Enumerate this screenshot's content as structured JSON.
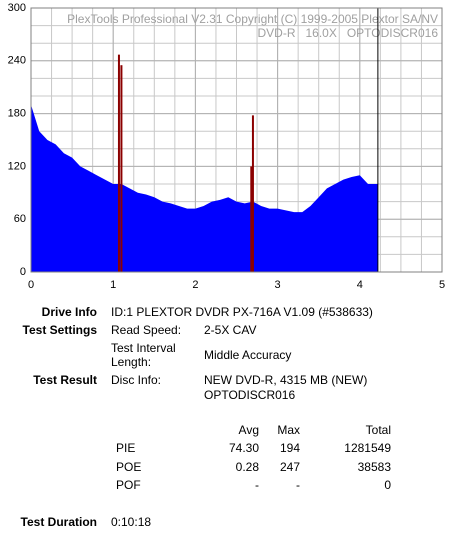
{
  "chart_data": {
    "type": "area",
    "overlay_text": [
      "PlexTools Professional V2.31 Copyright (C) 1999-2005 Plextor SA/NV",
      "DVD-R   16.0X   OPTODISCR016"
    ],
    "xlim": [
      0,
      5
    ],
    "xticks": [
      0,
      1,
      2,
      3,
      4,
      5
    ],
    "ylim": [
      0,
      300
    ],
    "yticks": [
      0,
      60,
      120,
      180,
      240,
      300
    ],
    "grid": true,
    "minor_grid": {
      "x": 0.25,
      "y": 20
    },
    "end_marker": {
      "x": 4.22,
      "color": "#000000"
    },
    "series": [
      {
        "color": "#0000ff",
        "mark": "area",
        "x": [
          0,
          0.05,
          0.1,
          0.2,
          0.3,
          0.4,
          0.5,
          0.6,
          0.7,
          0.8,
          0.9,
          1.0,
          1.1,
          1.2,
          1.3,
          1.4,
          1.5,
          1.6,
          1.7,
          1.8,
          1.9,
          2.0,
          2.1,
          2.2,
          2.3,
          2.4,
          2.5,
          2.6,
          2.7,
          2.8,
          2.9,
          3.0,
          3.1,
          3.2,
          3.3,
          3.4,
          3.5,
          3.6,
          3.7,
          3.8,
          3.9,
          4.0,
          4.1,
          4.22
        ],
        "values": [
          190,
          175,
          160,
          150,
          145,
          135,
          130,
          120,
          115,
          110,
          105,
          100,
          100,
          95,
          90,
          88,
          85,
          80,
          78,
          75,
          72,
          72,
          75,
          80,
          82,
          85,
          80,
          78,
          80,
          75,
          72,
          72,
          70,
          68,
          68,
          75,
          85,
          95,
          100,
          105,
          108,
          110,
          100,
          100
        ]
      },
      {
        "color": "#8b0000",
        "mark": "spike",
        "x": [
          1.07,
          1.1,
          2.68,
          2.7
        ],
        "values": [
          247,
          235,
          120,
          178
        ]
      }
    ]
  },
  "drive_info": {
    "label": "Drive Info",
    "value": "ID:1 PLEXTOR DVDR PX-716A V1.09 (#538633)"
  },
  "test_settings": {
    "label": "Test Settings",
    "items": [
      [
        "Read Speed:",
        "2-5X CAV"
      ],
      [
        "Test Interval Length:",
        "Middle Accuracy"
      ]
    ]
  },
  "test_result": {
    "label": "Test Result",
    "key": "Disc Info:",
    "value": [
      "NEW DVD-R, 4315 MB (NEW)",
      "OPTODISCR016"
    ]
  },
  "stats": {
    "columns": [
      "Avg",
      "Max",
      "Total"
    ],
    "rows": [
      [
        "PIE",
        "74.30",
        "194",
        "1281549"
      ],
      [
        "POE",
        "0.28",
        "247",
        "38583"
      ],
      [
        "POF",
        "-",
        "-",
        "0"
      ]
    ]
  },
  "test_duration": {
    "label": "Test Duration",
    "value": "0:10:18"
  }
}
